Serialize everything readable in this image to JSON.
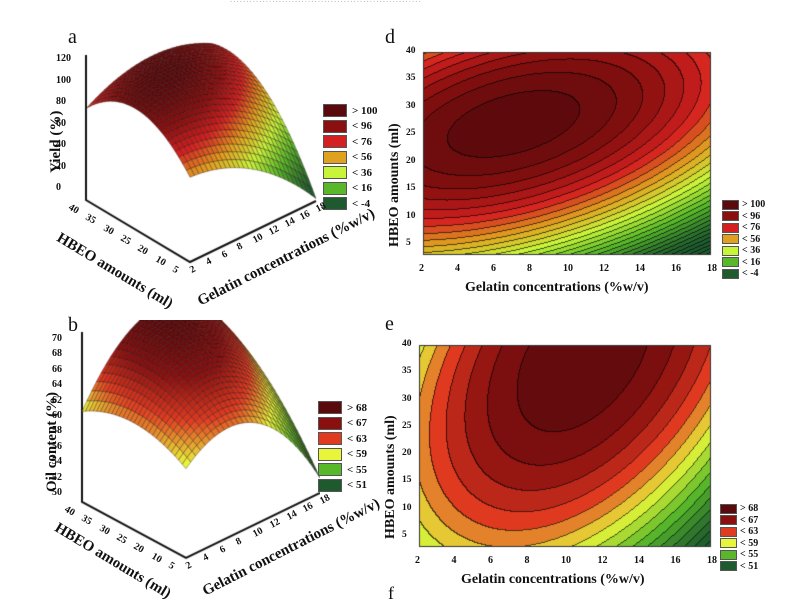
{
  "page": {
    "header_text": "...........................................................",
    "trailing_panel_letter": "f"
  },
  "chart_data": [
    {
      "id": "a",
      "panel_letter": "a",
      "type": "surface3d",
      "title": "",
      "zlabel": "Yield (%)",
      "xlabel": "Gelatin concentrations (%w/v)",
      "ylabel": "HBEO amounts (ml)",
      "x_ticks": [
        "2",
        "4",
        "6",
        "8",
        "10",
        "12",
        "14",
        "16",
        "18"
      ],
      "y_ticks": [
        "5",
        "10",
        "20",
        "25",
        "30",
        "35",
        "40"
      ],
      "z_ticks": [
        "0",
        "20",
        "40",
        "60",
        "80",
        "100",
        "120"
      ],
      "xlim": [
        2,
        18
      ],
      "ylim": [
        5,
        40
      ],
      "zlim": [
        -10,
        125
      ],
      "model": {
        "form": "quadratic",
        "peak_x": 7,
        "peak_y": 27,
        "peak_z": 108,
        "corner_values": {
          "x2_y40": 65,
          "x18_y5": -5,
          "x2_y5": 70,
          "x18_y40": 78
        }
      },
      "legend": [
        {
          "label": "> 100",
          "color": "#5a0a0c"
        },
        {
          "label": "< 96",
          "color": "#8a1010"
        },
        {
          "label": "< 76",
          "color": "#d42020"
        },
        {
          "label": "< 56",
          "color": "#e0a020"
        },
        {
          "label": "< 36",
          "color": "#c8f53a"
        },
        {
          "label": "< 16",
          "color": "#58b82a"
        },
        {
          "label": "< -4",
          "color": "#1e5a2e"
        }
      ]
    },
    {
      "id": "b",
      "panel_letter": "b",
      "type": "surface3d",
      "title": "",
      "zlabel": "Oil content (%)",
      "xlabel": "Gelatin concentrations (%w/v)",
      "ylabel": "HBEO amounts (ml)",
      "x_ticks": [
        "2",
        "4",
        "6",
        "8",
        "10",
        "12",
        "14",
        "16",
        "18"
      ],
      "y_ticks": [
        "5",
        "10",
        "20",
        "25",
        "30",
        "35",
        "40"
      ],
      "z_ticks": [
        "50",
        "52",
        "54",
        "56",
        "58",
        "60",
        "62",
        "64",
        "66",
        "68",
        "70"
      ],
      "xlim": [
        2,
        18
      ],
      "ylim": [
        5,
        40
      ],
      "zlim": [
        49,
        71
      ],
      "model": {
        "form": "quadratic",
        "peak_x": 11,
        "peak_y": 38,
        "peak_z": 69.5,
        "corner_values": {
          "x2_y40": 60,
          "x18_y5": 51,
          "x2_y5": 60.5,
          "x18_y40": 66
        }
      },
      "legend": [
        {
          "label": "> 68",
          "color": "#5a0a0c"
        },
        {
          "label": "< 67",
          "color": "#8a1010"
        },
        {
          "label": "< 63",
          "color": "#e03a20"
        },
        {
          "label": "< 59",
          "color": "#e8f53a"
        },
        {
          "label": "< 55",
          "color": "#58b82a"
        },
        {
          "label": "< 51",
          "color": "#1e5a2e"
        }
      ]
    },
    {
      "id": "d",
      "panel_letter": "d",
      "type": "contour",
      "title": "",
      "xlabel": "Gelatin concentrations (%w/v)",
      "ylabel": "HBEO amounts (ml)",
      "x_ticks": [
        "2",
        "4",
        "6",
        "8",
        "10",
        "12",
        "14",
        "16",
        "18"
      ],
      "y_ticks": [
        "5",
        "10",
        "15",
        "20",
        "25",
        "30",
        "35",
        "40"
      ],
      "xlim": [
        2,
        18
      ],
      "ylim": [
        3,
        40
      ],
      "source_surface": "a",
      "legend": [
        {
          "label": "> 100",
          "color": "#5a0a0c"
        },
        {
          "label": "< 96",
          "color": "#8a1010"
        },
        {
          "label": "< 76",
          "color": "#d42020"
        },
        {
          "label": "< 56",
          "color": "#e0a020"
        },
        {
          "label": "< 36",
          "color": "#c8f53a"
        },
        {
          "label": "< 16",
          "color": "#58b82a"
        },
        {
          "label": "< -4",
          "color": "#1e5a2e"
        }
      ]
    },
    {
      "id": "e",
      "panel_letter": "e",
      "type": "contour",
      "title": "",
      "xlabel": "Gelatin concentrations (%w/v)",
      "ylabel": "HBEO amounts (ml)",
      "x_ticks": [
        "2",
        "4",
        "6",
        "8",
        "10",
        "12",
        "14",
        "16",
        "18"
      ],
      "y_ticks": [
        "5",
        "10",
        "15",
        "20",
        "25",
        "30",
        "35",
        "40"
      ],
      "xlim": [
        2,
        18
      ],
      "ylim": [
        3,
        40
      ],
      "source_surface": "b",
      "legend": [
        {
          "label": "> 68",
          "color": "#5a0a0c"
        },
        {
          "label": "< 67",
          "color": "#8a1010"
        },
        {
          "label": "< 63",
          "color": "#e03a20"
        },
        {
          "label": "< 59",
          "color": "#e8f53a"
        },
        {
          "label": "< 55",
          "color": "#58b82a"
        },
        {
          "label": "< 51",
          "color": "#1e5a2e"
        }
      ]
    }
  ]
}
